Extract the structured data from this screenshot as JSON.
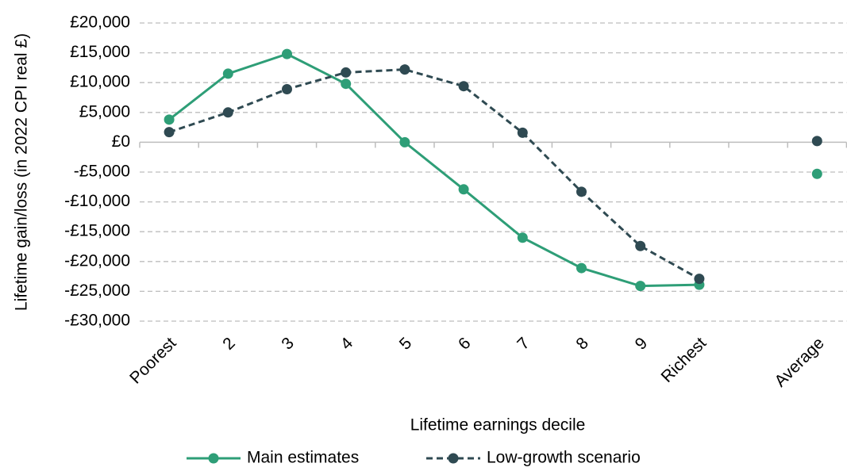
{
  "chart_data": {
    "type": "line",
    "y_label": "Lifetime gain/loss (in 2022 CPI real £)",
    "x_label": "Lifetime earnings decile",
    "categories": [
      "Poorest",
      "2",
      "3",
      "4",
      "5",
      "6",
      "7",
      "8",
      "9",
      "Richest",
      null,
      "Average"
    ],
    "series": [
      {
        "name": "Main estimates",
        "color": "#2e9e77",
        "line_style": "solid",
        "values": [
          3800,
          11500,
          14800,
          9800,
          0,
          -7900,
          -16000,
          -21100,
          -24100,
          -23900,
          null,
          -5300
        ]
      },
      {
        "name": "Low-growth scenario",
        "color": "#2f4a52",
        "line_style": "dashed",
        "values": [
          1700,
          5000,
          8900,
          11700,
          12200,
          9400,
          1600,
          -8300,
          -17400,
          -22900,
          null,
          200
        ]
      }
    ],
    "ylim": [
      -30000,
      20000
    ],
    "yticks": [
      {
        "value": 20000,
        "label": "£20,000"
      },
      {
        "value": 15000,
        "label": "£15,000"
      },
      {
        "value": 10000,
        "label": "£10,000"
      },
      {
        "value": 5000,
        "label": "£5,000"
      },
      {
        "value": 0,
        "label": "£0"
      },
      {
        "value": -5000,
        "label": "-£5,000"
      },
      {
        "value": -10000,
        "label": "-£10,000"
      },
      {
        "value": -15000,
        "label": "-£15,000"
      },
      {
        "value": -20000,
        "label": "-£20,000"
      },
      {
        "value": -25000,
        "label": "-£25,000"
      },
      {
        "value": -30000,
        "label": "-£30,000"
      }
    ],
    "grid": true,
    "legend": "bottom"
  }
}
